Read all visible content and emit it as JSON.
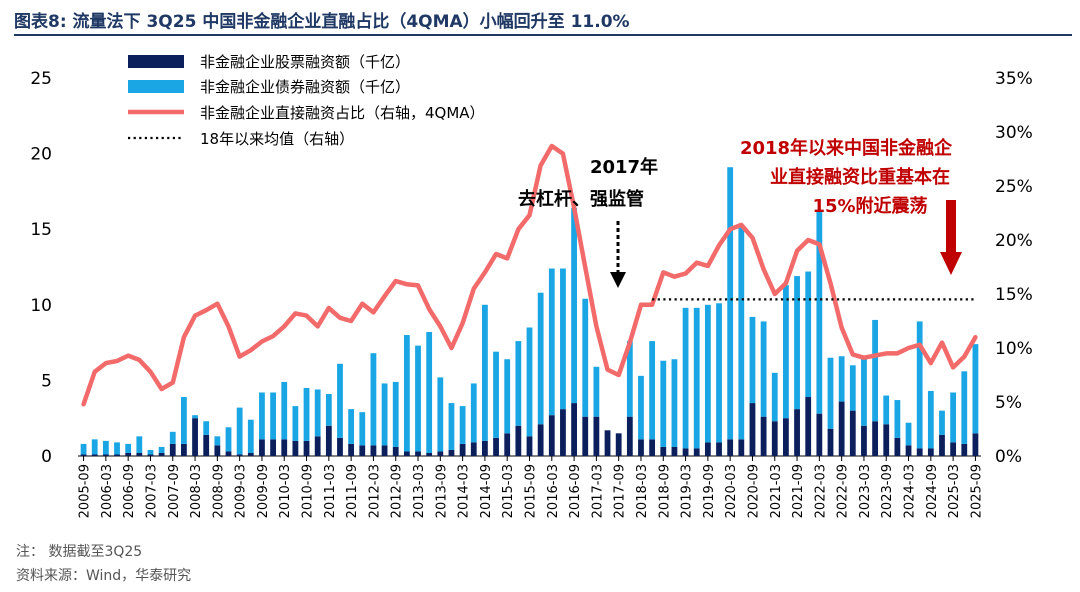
{
  "title": "图表8:  流量法下 3Q25 中国非金融企业直融占比（4QMA）小幅回升至 11.0%",
  "footnotes": [
    "注： 数据截至3Q25",
    "资料来源：Wind，华泰研究"
  ],
  "colors": {
    "stock": "#0b1f5c",
    "bond": "#1aa6e4",
    "ratio": "#f26a6a",
    "avg": "#000000",
    "annot_red": "#c00000",
    "arrow_red": "#c00000"
  },
  "chart_data": {
    "type": "bar",
    "stacked": true,
    "categories": [
      "2005-09",
      "2005-12",
      "2006-03",
      "2006-06",
      "2006-09",
      "2006-12",
      "2007-03",
      "2007-06",
      "2007-09",
      "2007-12",
      "2008-03",
      "2008-06",
      "2008-09",
      "2008-12",
      "2009-03",
      "2009-06",
      "2009-09",
      "2009-12",
      "2010-03",
      "2010-06",
      "2010-09",
      "2010-12",
      "2011-03",
      "2011-06",
      "2011-09",
      "2011-12",
      "2012-03",
      "2012-06",
      "2012-09",
      "2012-12",
      "2013-03",
      "2013-06",
      "2013-09",
      "2013-12",
      "2014-03",
      "2014-06",
      "2014-09",
      "2014-12",
      "2015-03",
      "2015-06",
      "2015-09",
      "2015-12",
      "2016-03",
      "2016-06",
      "2016-09",
      "2016-12",
      "2017-03",
      "2017-06",
      "2017-09",
      "2017-12",
      "2018-03",
      "2018-06",
      "2018-09",
      "2018-12",
      "2019-03",
      "2019-06",
      "2019-09",
      "2019-12",
      "2020-03",
      "2020-06",
      "2020-09",
      "2020-12",
      "2021-03",
      "2021-06",
      "2021-09",
      "2021-12",
      "2022-03",
      "2022-06",
      "2022-09",
      "2022-12",
      "2023-03",
      "2023-06",
      "2023-09",
      "2023-12",
      "2024-03",
      "2024-06",
      "2024-09",
      "2024-12",
      "2025-03",
      "2025-06",
      "2025-09"
    ],
    "x_tick_labels": [
      "2005-09",
      "2006-03",
      "2006-09",
      "2007-03",
      "2007-09",
      "2008-03",
      "2008-09",
      "2009-03",
      "2009-09",
      "2010-03",
      "2010-09",
      "2011-03",
      "2011-09",
      "2012-03",
      "2012-09",
      "2013-03",
      "2013-09",
      "2014-03",
      "2014-09",
      "2015-03",
      "2015-09",
      "2016-03",
      "2016-09",
      "2017-03",
      "2017-09",
      "2018-03",
      "2018-09",
      "2019-03",
      "2019-09",
      "2020-03",
      "2020-09",
      "2021-03",
      "2021-09",
      "2022-03",
      "2022-09",
      "2023-03",
      "2023-09",
      "2024-03",
      "2024-09",
      "2025-03",
      "2025-09"
    ],
    "series": [
      {
        "name": "非金融企业股票融资额（千亿）",
        "type": "bar",
        "axis": "left",
        "values": [
          0.1,
          0.1,
          0.1,
          0.1,
          0.2,
          0.2,
          0.1,
          0.2,
          0.8,
          0.8,
          2.5,
          1.4,
          0.7,
          0.3,
          0.1,
          0.2,
          1.1,
          1.1,
          1.1,
          1.0,
          1.0,
          1.3,
          2.0,
          1.2,
          0.8,
          0.7,
          0.7,
          0.7,
          0.6,
          0.3,
          0.3,
          0.2,
          0.3,
          0.4,
          0.8,
          0.9,
          1.0,
          1.2,
          1.5,
          2.0,
          1.3,
          2.1,
          2.7,
          3.1,
          3.5,
          2.6,
          2.6,
          1.7,
          1.5,
          2.6,
          1.1,
          1.1,
          0.6,
          0.6,
          0.5,
          0.5,
          0.9,
          0.9,
          1.1,
          1.1,
          3.5,
          2.6,
          2.3,
          2.5,
          3.1,
          3.9,
          2.8,
          1.8,
          3.6,
          3.0,
          2.0,
          2.3,
          2.1,
          1.2,
          0.7,
          0.5,
          0.5,
          1.4,
          0.9,
          0.8,
          1.5
        ]
      },
      {
        "name": "非金融企业债券融资额（千亿）",
        "type": "bar",
        "axis": "left",
        "values": [
          0.7,
          1.0,
          0.9,
          0.8,
          0.6,
          1.1,
          0.3,
          0.4,
          0.8,
          3.1,
          0.2,
          0.9,
          0.6,
          1.6,
          3.1,
          2.2,
          3.1,
          3.1,
          3.8,
          2.3,
          3.5,
          3.1,
          2.1,
          4.9,
          2.3,
          2.2,
          6.1,
          4.1,
          4.3,
          7.7,
          7.0,
          8.0,
          4.9,
          3.1,
          2.5,
          3.9,
          9.0,
          5.7,
          4.9,
          5.6,
          7.2,
          8.7,
          9.7,
          9.3,
          12.9,
          7.8,
          3.3,
          0.0,
          0.0,
          5.0,
          4.2,
          6.5,
          5.7,
          5.8,
          9.3,
          9.3,
          9.1,
          9.2,
          18.0,
          14.2,
          5.7,
          6.3,
          3.2,
          8.8,
          8.8,
          8.3,
          13.4,
          4.7,
          3.0,
          3.0,
          4.5,
          6.7,
          1.9,
          2.5,
          1.5,
          8.4,
          3.8,
          1.6,
          3.3,
          4.8,
          5.9
        ]
      },
      {
        "name": "非金融企业直接融资占比（右轴，4QMA）",
        "type": "line",
        "axis": "right",
        "values": [
          4.8,
          7.8,
          8.6,
          8.8,
          9.3,
          8.9,
          7.8,
          6.2,
          6.8,
          11.0,
          13.0,
          13.5,
          14.1,
          12.0,
          9.2,
          9.8,
          10.6,
          11.1,
          12.0,
          13.2,
          13.0,
          12.0,
          13.7,
          12.8,
          12.5,
          14.1,
          13.3,
          14.8,
          16.2,
          15.9,
          15.8,
          13.6,
          12.0,
          10.0,
          12.3,
          15.5,
          17.0,
          18.7,
          18.3,
          21.0,
          22.3,
          26.9,
          28.7,
          28.0,
          23.0,
          17.5,
          12.0,
          8.0,
          7.5,
          10.5,
          14.0,
          14.0,
          17.0,
          16.6,
          16.9,
          17.9,
          17.6,
          19.5,
          21.0,
          21.4,
          20.2,
          17.3,
          15.0,
          16.0,
          19.0,
          20.0,
          19.6,
          16.0,
          11.9,
          9.4,
          9.1,
          9.3,
          9.5,
          9.5,
          10.0,
          10.3,
          8.6,
          10.5,
          8.2,
          9.2,
          11.0
        ]
      },
      {
        "name": "18年以来均值（右轴）",
        "type": "line",
        "axis": "right",
        "style": "dotted",
        "start": "2018-06",
        "end": "2025-09",
        "value": 14.5
      }
    ],
    "y_left": {
      "min": 0,
      "max": 25,
      "ticks": [
        0,
        5,
        10,
        15,
        20,
        25
      ],
      "tick_labels": [
        "0",
        "5",
        "10",
        "15",
        "20",
        "25"
      ]
    },
    "y_right": {
      "min": 0,
      "max": 35,
      "ticks": [
        0,
        5,
        10,
        15,
        20,
        25,
        30,
        35
      ],
      "tick_labels": [
        "0%",
        "5%",
        "10%",
        "15%",
        "20%",
        "25%",
        "30%",
        "35%"
      ]
    },
    "legend": {
      "placement": "top-left"
    },
    "annotations": [
      {
        "lines": [
          "2017年",
          "去杠杆、强监管"
        ],
        "color": "#000000",
        "arrow": "dashed-down",
        "points_to": "2017-09"
      },
      {
        "lines": [
          "2018年以来中国非金融企",
          "业直接融资比重基本在",
          "15%附近震荡"
        ],
        "color": "#c00000",
        "arrow": "solid-down-red"
      }
    ]
  }
}
